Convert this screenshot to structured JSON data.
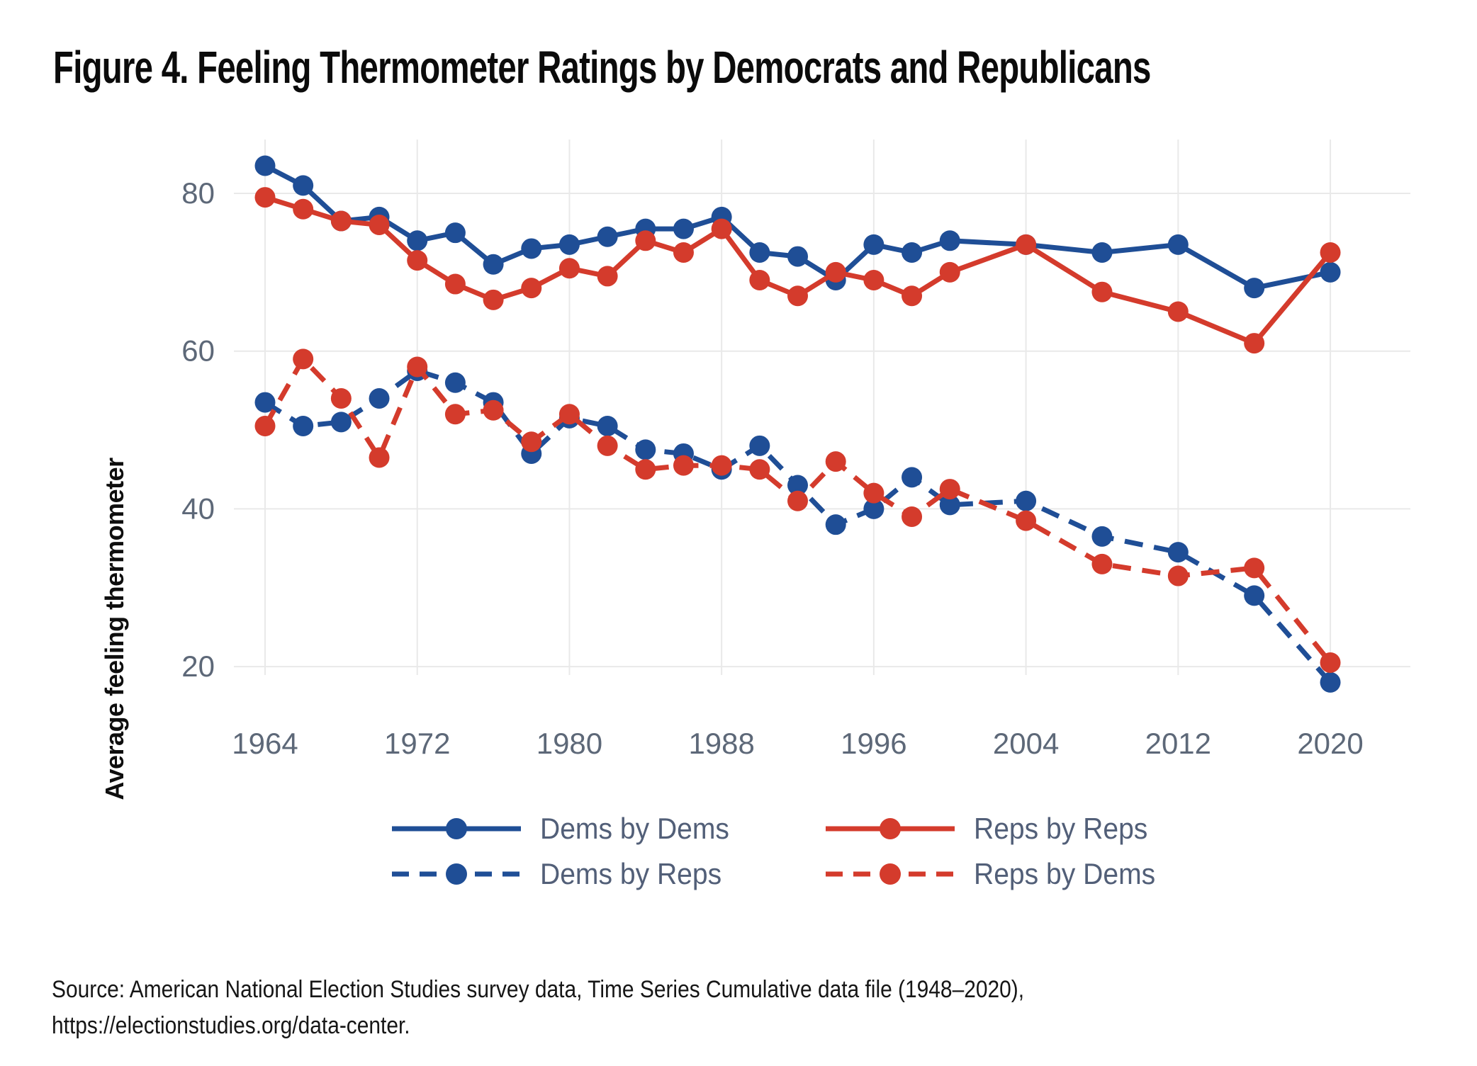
{
  "title": "Figure 4. Feeling Thermometer Ratings by Democrats and Republicans",
  "y_axis_title": "Average feeling thermometer",
  "source": {
    "line1": "Source: American National Election Studies survey data, Time Series Cumulative data file (1948–2020),",
    "line2": "https://electionstudies.org/data-center."
  },
  "colors": {
    "dem_blue": "#1f4e96",
    "rep_red": "#d43b2c",
    "axis_text": "#5d6878",
    "legend_text": "#525f78",
    "gridline": "#e9e9e9"
  },
  "legend": {
    "items": [
      {
        "label": "Dems by Dems",
        "color": "#1f4e96",
        "dashed": false
      },
      {
        "label": "Reps by Reps",
        "color": "#d43b2c",
        "dashed": false
      },
      {
        "label": "Dems by Reps",
        "color": "#1f4e96",
        "dashed": true
      },
      {
        "label": "Reps by Dems",
        "color": "#d43b2c",
        "dashed": true
      }
    ]
  },
  "chart_data": {
    "type": "line",
    "title": "Figure 4. Feeling Thermometer Ratings by Democrats and Republicans",
    "xlabel": "",
    "ylabel": "Average feeling thermometer",
    "x": [
      1964,
      1966,
      1968,
      1970,
      1972,
      1974,
      1976,
      1978,
      1980,
      1982,
      1984,
      1986,
      1988,
      1990,
      1992,
      1994,
      1996,
      1998,
      2000,
      2004,
      2008,
      2012,
      2016,
      2020
    ],
    "x_ticks": [
      1964,
      1972,
      1980,
      1988,
      1996,
      2004,
      2012,
      2020
    ],
    "y_ticks": [
      20,
      40,
      60,
      80
    ],
    "ylim": [
      15,
      87
    ],
    "grid": true,
    "legend_position": "bottom",
    "series": [
      {
        "name": "Dems by Dems",
        "color": "#1f4e96",
        "style": "solid",
        "values": [
          83.5,
          81,
          76.5,
          77,
          74,
          75,
          71,
          73,
          73.5,
          74.5,
          75.5,
          75.5,
          77,
          72.5,
          72,
          69,
          73.5,
          72.5,
          74,
          73.5,
          72.5,
          73.5,
          68,
          70
        ]
      },
      {
        "name": "Reps by Reps",
        "color": "#d43b2c",
        "style": "solid",
        "values": [
          79.5,
          78,
          76.5,
          76,
          71.5,
          68.5,
          66.5,
          68,
          70.5,
          69.5,
          74,
          72.5,
          75.5,
          69,
          67,
          70,
          69,
          67,
          70,
          73.5,
          67.5,
          65,
          61,
          72.5
        ]
      },
      {
        "name": "Dems by Reps",
        "color": "#1f4e96",
        "style": "dashed",
        "values": [
          53.5,
          50.5,
          51,
          54,
          57.5,
          56,
          53.5,
          47,
          51.5,
          50.5,
          47.5,
          47,
          45,
          48,
          43,
          38,
          40,
          44,
          40.5,
          41,
          36.5,
          34.5,
          29,
          18
        ]
      },
      {
        "name": "Reps by Dems",
        "color": "#d43b2c",
        "style": "dashed",
        "values": [
          50.5,
          59,
          54,
          46.5,
          58,
          52,
          52.5,
          48.5,
          52,
          48,
          45,
          45.5,
          45.5,
          45,
          41,
          46,
          42,
          39,
          42.5,
          38.5,
          33,
          31.5,
          32.5,
          20.5
        ]
      }
    ]
  }
}
